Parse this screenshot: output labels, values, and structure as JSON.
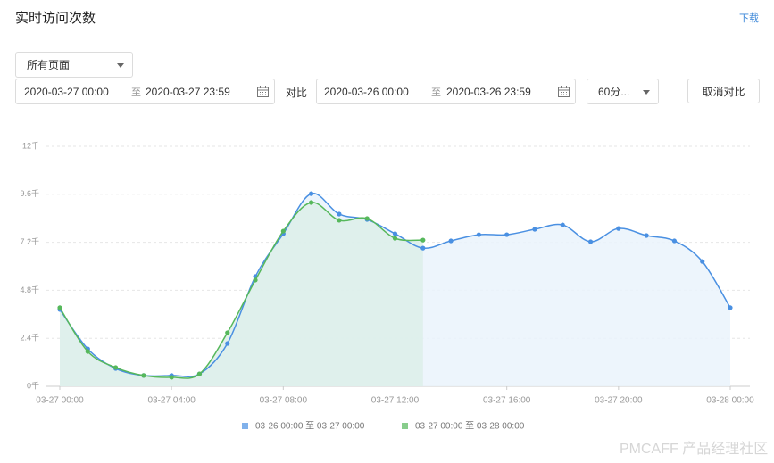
{
  "header": {
    "title": "实时访问次数",
    "download": "下载"
  },
  "filters": {
    "page_select": "所有页面",
    "range1": {
      "start": "2020-03-27 00:00",
      "sep": "至",
      "end": "2020-03-27 23:59"
    },
    "compare_label": "对比",
    "range2": {
      "start": "2020-03-26 00:00",
      "sep": "至",
      "end": "2020-03-26 23:59"
    },
    "interval": "60分...",
    "cancel": "取消对比"
  },
  "chart_data": {
    "type": "line",
    "x": [
      0,
      1,
      2,
      3,
      4,
      5,
      6,
      7,
      8,
      9,
      10,
      11,
      12,
      13,
      14,
      15,
      16,
      17,
      18,
      19,
      20,
      21,
      22,
      23,
      24
    ],
    "xlim": [
      0,
      24
    ],
    "xticks": [
      {
        "value": 0,
        "label": "03-27 00:00"
      },
      {
        "value": 4,
        "label": "03-27 04:00"
      },
      {
        "value": 8,
        "label": "03-27 08:00"
      },
      {
        "value": 12,
        "label": "03-27 12:00"
      },
      {
        "value": 16,
        "label": "03-27 16:00"
      },
      {
        "value": 20,
        "label": "03-27 20:00"
      },
      {
        "value": 24,
        "label": "03-28 00:00"
      }
    ],
    "ylim": [
      0,
      12
    ],
    "yticks": [
      {
        "value": 0,
        "label": "0千"
      },
      {
        "value": 2.4,
        "label": "2.4千"
      },
      {
        "value": 4.8,
        "label": "4.8千"
      },
      {
        "value": 7.2,
        "label": "7.2千"
      },
      {
        "value": 9.6,
        "label": "9.6千"
      },
      {
        "value": 12,
        "label": "12千"
      }
    ],
    "grid": true,
    "area": true,
    "series": [
      {
        "name": "03-26 00:00 至 03-27 00:00",
        "color": "#4a90e2",
        "fill": "#eaf3fc",
        "values": [
          3.84,
          1.87,
          0.89,
          0.54,
          0.54,
          0.62,
          2.14,
          5.49,
          7.63,
          9.63,
          8.61,
          8.34,
          7.63,
          6.91,
          7.27,
          7.58,
          7.58,
          7.85,
          8.07,
          7.23,
          7.89,
          7.54,
          7.27,
          6.24,
          3.93
        ]
      },
      {
        "name": "03-27 00:00 至 03-28 00:00",
        "color": "#56b85b",
        "fill": "#dcefe9",
        "values": [
          3.93,
          1.74,
          0.94,
          0.54,
          0.45,
          0.62,
          2.68,
          5.31,
          7.76,
          9.19,
          8.3,
          8.39,
          7.4,
          7.31,
          null,
          null,
          null,
          null,
          null,
          null,
          null,
          null,
          null,
          null,
          null
        ]
      }
    ]
  },
  "watermark": "PMCAFF 产品经理社区"
}
